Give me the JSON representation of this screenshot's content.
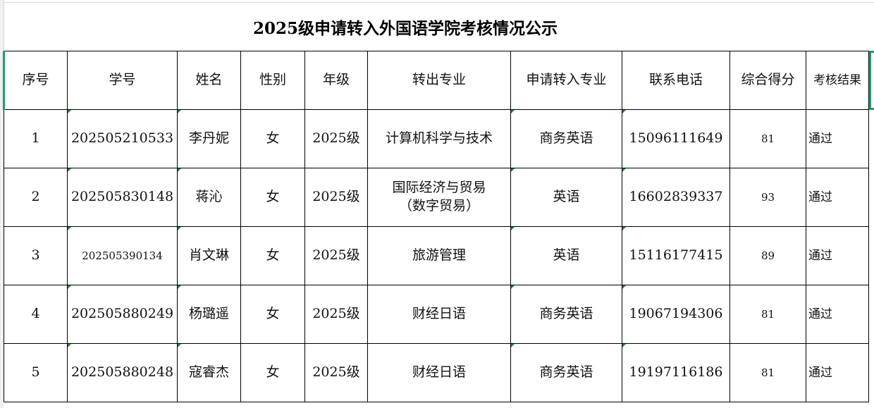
{
  "title": "2025级申请转入外国语学院考核情况公示",
  "headers": [
    "序号",
    "学号",
    "姓名",
    "性别",
    "年级",
    "转出专业",
    "申请转入专业",
    "联系电话",
    "综合得分",
    "考核结果"
  ],
  "rows": [
    {
      "no": "1",
      "id": "202505210533",
      "name": "李丹妮",
      "gender": "女",
      "grade": "2025级",
      "from": "计算机科学与技术",
      "to": "商务英语",
      "phone": "15096111649",
      "score": "81",
      "result": "通过"
    },
    {
      "no": "2",
      "id": "202505830148",
      "name": "蒋沁",
      "gender": "女",
      "grade": "2025级",
      "from": "国际经济与贸易（数字贸易）",
      "to": "英语",
      "phone": "16602839337",
      "score": "93",
      "result": "通过"
    },
    {
      "no": "3",
      "id": "202505390134",
      "name": "肖文琳",
      "gender": "女",
      "grade": "2025级",
      "from": "旅游管理",
      "to": "英语",
      "phone": "15116177415",
      "score": "89",
      "result": "通过"
    },
    {
      "no": "4",
      "id": "202505880249",
      "name": "杨璐遥",
      "gender": "女",
      "grade": "2025级",
      "from": "财经日语",
      "to": "商务英语",
      "phone": "19067194306",
      "score": "81",
      "result": "通过"
    },
    {
      "no": "5",
      "id": "202505880248",
      "name": "寇睿杰",
      "gender": "女",
      "grade": "2025级",
      "from": "财经日语",
      "to": "商务英语",
      "phone": "19197116186",
      "score": "81",
      "result": "通过"
    }
  ],
  "colors": {
    "selection": "#1e9e6a",
    "grid": "#d9d9d9"
  }
}
